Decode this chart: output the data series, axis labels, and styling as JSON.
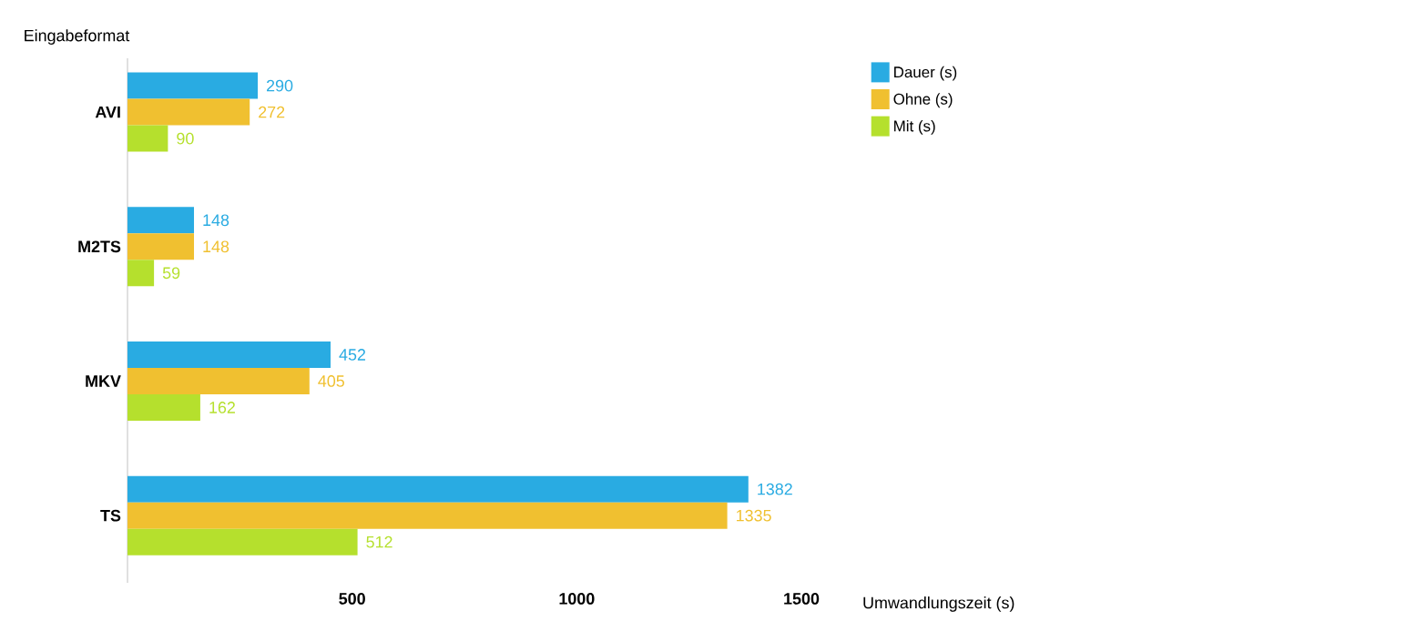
{
  "chart_data": {
    "type": "bar",
    "orientation": "horizontal",
    "xlabel": "Umwandlungszeit (s)",
    "ylabel": "Eingabeformat",
    "categories": [
      "AVI",
      "M2TS",
      "MKV",
      "TS"
    ],
    "series": [
      {
        "name": "Dauer (s)",
        "color": "#29abe2",
        "values": [
          290,
          148,
          452,
          1382
        ]
      },
      {
        "name": "Ohne (s)",
        "color": "#f0c030",
        "values": [
          272,
          148,
          405,
          1335
        ]
      },
      {
        "name": "Mit (s)",
        "color": "#b5e02d",
        "values": [
          90,
          59,
          162,
          512
        ]
      }
    ],
    "xlim": [
      0,
      1500
    ],
    "xticks": [
      500,
      1000,
      1500
    ],
    "data_labels": true,
    "legend": "top right",
    "grid": false
  }
}
